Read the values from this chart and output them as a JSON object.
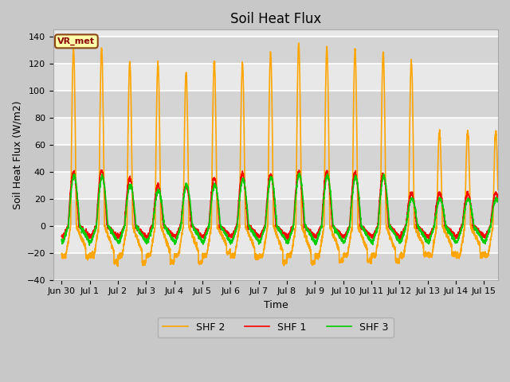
{
  "title": "Soil Heat Flux",
  "ylabel": "Soil Heat Flux (W/m2)",
  "xlabel": "Time",
  "ylim": [
    -40,
    145
  ],
  "yticks": [
    -40,
    -20,
    0,
    20,
    40,
    60,
    80,
    100,
    120,
    140
  ],
  "colors": {
    "SHF 1": "#ff0000",
    "SHF 2": "#ffa500",
    "SHF 3": "#00cc00"
  },
  "label_box": "VR_met",
  "legend_labels": [
    "SHF 1",
    "SHF 2",
    "SHF 3"
  ],
  "fig_bg": "#c8c8c8",
  "plot_bg": "#e8e8e8",
  "band_color": "#d0d0d0",
  "title_fontsize": 12,
  "axis_fontsize": 9,
  "tick_fontsize": 8,
  "shf2_peaks": [
    131,
    131,
    122,
    120,
    113,
    122,
    120,
    128,
    135,
    131,
    130,
    129,
    122,
    70
  ],
  "shf2_troughs": [
    -23,
    -27,
    -27,
    -27,
    -27,
    -20,
    -23,
    -27,
    -27,
    -26,
    -26,
    -26,
    -21,
    -21
  ],
  "shf1_peaks": [
    40,
    41,
    35,
    30,
    30,
    35,
    39,
    38,
    40,
    40,
    39,
    38,
    24,
    24
  ],
  "shf3_peaks": [
    37,
    36,
    30,
    26,
    30,
    30,
    34,
    36,
    38,
    37,
    36,
    36,
    20,
    20
  ]
}
